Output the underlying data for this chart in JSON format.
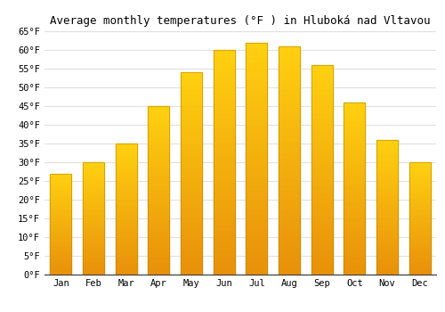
{
  "title": "Average monthly temperatures (°F ) in Hluboká nad Vltavou",
  "months": [
    "Jan",
    "Feb",
    "Mar",
    "Apr",
    "May",
    "Jun",
    "Jul",
    "Aug",
    "Sep",
    "Oct",
    "Nov",
    "Dec"
  ],
  "values": [
    27,
    30,
    35,
    45,
    54,
    60,
    62,
    61,
    56,
    46,
    36,
    30
  ],
  "bar_color": "#FFA500",
  "bar_edge_color": "#B8860B",
  "ylim": [
    0,
    65
  ],
  "yticks": [
    0,
    5,
    10,
    15,
    20,
    25,
    30,
    35,
    40,
    45,
    50,
    55,
    60,
    65
  ],
  "background_color": "#ffffff",
  "grid_color": "#e0e0e0",
  "title_fontsize": 9,
  "tick_fontsize": 7.5
}
